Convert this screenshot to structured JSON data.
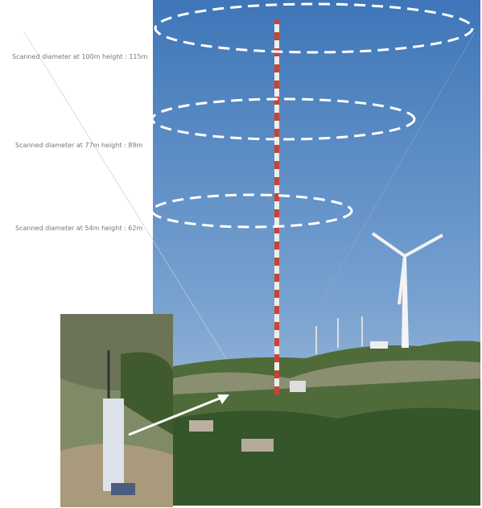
{
  "annotations": [
    {
      "label": "Scanned diameter at 100m height : 115m"
    },
    {
      "label": "Scanned diameter at 77m height : 89m"
    },
    {
      "label": "Scanned diameter at 54m height : 62m"
    }
  ]
}
